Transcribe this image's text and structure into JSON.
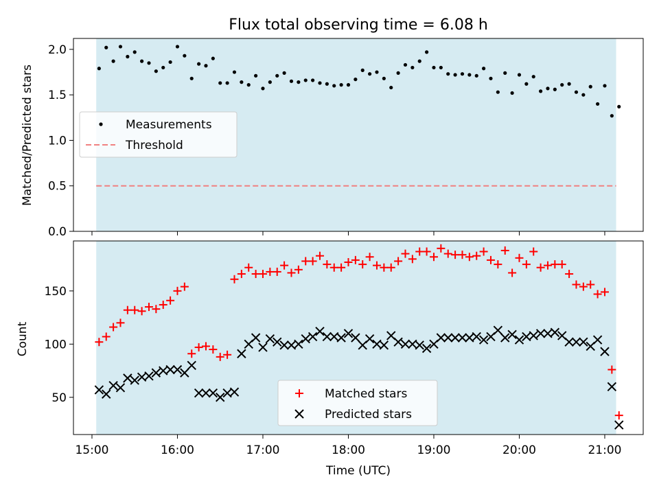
{
  "figure": {
    "title": "Flux total observing time = 6.08 h"
  },
  "colors": {
    "shade": "#add8e6",
    "measurement": "#000000",
    "threshold": "#f08080",
    "matched": "#ff0000",
    "predicted": "#000000"
  },
  "chart_data": [
    {
      "type": "scatter",
      "ylabel": "Matched/Predicted stars",
      "ylim": [
        0,
        2.12
      ],
      "yticks": [
        "0.0",
        "0.5",
        "1.0",
        "1.5",
        "2.0"
      ],
      "xlim": [
        "14:47",
        "21:27"
      ],
      "shaded_interval": [
        "15:03",
        "21:08"
      ],
      "threshold": 0.5,
      "legend": {
        "placement": "center-left",
        "entries": [
          "Measurements",
          "Threshold"
        ]
      },
      "series": [
        {
          "name": "Measurements",
          "marker": "dot",
          "x": [
            "15:05",
            "15:10",
            "15:15",
            "15:20",
            "15:25",
            "15:30",
            "15:35",
            "15:40",
            "15:45",
            "15:50",
            "15:55",
            "16:00",
            "16:05",
            "16:10",
            "16:15",
            "16:20",
            "16:25",
            "16:30",
            "16:35",
            "16:40",
            "16:45",
            "16:50",
            "16:55",
            "17:00",
            "17:05",
            "17:10",
            "17:15",
            "17:20",
            "17:25",
            "17:30",
            "17:35",
            "17:40",
            "17:45",
            "17:50",
            "17:55",
            "18:00",
            "18:05",
            "18:10",
            "18:15",
            "18:20",
            "18:25",
            "18:30",
            "18:35",
            "18:40",
            "18:45",
            "18:50",
            "18:55",
            "19:00",
            "19:05",
            "19:10",
            "19:15",
            "19:20",
            "19:25",
            "19:30",
            "19:35",
            "19:40",
            "19:45",
            "19:50",
            "19:55",
            "20:00",
            "20:05",
            "20:10",
            "20:15",
            "20:20",
            "20:25",
            "20:30",
            "20:35",
            "20:40",
            "20:45",
            "20:50",
            "20:55",
            "21:00",
            "21:05",
            "21:10"
          ],
          "y": [
            1.79,
            2.02,
            1.87,
            2.03,
            1.92,
            1.97,
            1.87,
            1.85,
            1.76,
            1.8,
            1.86,
            2.03,
            1.93,
            1.68,
            1.84,
            1.82,
            1.9,
            1.63,
            1.63,
            1.75,
            1.64,
            1.61,
            1.71,
            1.57,
            1.64,
            1.71,
            1.74,
            1.65,
            1.64,
            1.66,
            1.66,
            1.63,
            1.62,
            1.6,
            1.61,
            1.61,
            1.67,
            1.77,
            1.73,
            1.75,
            1.68,
            1.58,
            1.74,
            1.83,
            1.8,
            1.87,
            1.97,
            1.8,
            1.8,
            1.73,
            1.72,
            1.73,
            1.72,
            1.71,
            1.79,
            1.68,
            1.53,
            1.74,
            1.52,
            1.72,
            1.62,
            1.7,
            1.54,
            1.57,
            1.56,
            1.61,
            1.62,
            1.53,
            1.5,
            1.59,
            1.4,
            1.6,
            1.27,
            1.37
          ]
        },
        {
          "name": "Threshold",
          "marker": "dashed-line",
          "y_const": 0.5
        }
      ]
    },
    {
      "type": "scatter",
      "xlabel": "Time (UTC)",
      "ylabel": "Count",
      "ylim": [
        15,
        197
      ],
      "yticks": [
        "50",
        "100",
        "150"
      ],
      "xlim": [
        "14:47",
        "21:27"
      ],
      "xticks": [
        "15:00",
        "16:00",
        "17:00",
        "18:00",
        "19:00",
        "20:00",
        "21:00"
      ],
      "shaded_interval": [
        "15:03",
        "21:08"
      ],
      "legend": {
        "placement": "lower-center",
        "entries": [
          "Matched stars",
          "Predicted stars"
        ]
      },
      "series": [
        {
          "name": "Matched stars",
          "marker": "plus",
          "x": [
            "15:05",
            "15:10",
            "15:15",
            "15:20",
            "15:25",
            "15:30",
            "15:35",
            "15:40",
            "15:45",
            "15:50",
            "15:55",
            "16:00",
            "16:05",
            "16:10",
            "16:15",
            "16:20",
            "16:25",
            "16:30",
            "16:35",
            "16:40",
            "16:45",
            "16:50",
            "16:55",
            "17:00",
            "17:05",
            "17:10",
            "17:15",
            "17:20",
            "17:25",
            "17:30",
            "17:35",
            "17:40",
            "17:45",
            "17:50",
            "17:55",
            "18:00",
            "18:05",
            "18:10",
            "18:15",
            "18:20",
            "18:25",
            "18:30",
            "18:35",
            "18:40",
            "18:45",
            "18:50",
            "18:55",
            "19:00",
            "19:05",
            "19:10",
            "19:15",
            "19:20",
            "19:25",
            "19:30",
            "19:35",
            "19:40",
            "19:45",
            "19:50",
            "19:55",
            "20:00",
            "20:05",
            "20:10",
            "20:15",
            "20:20",
            "20:25",
            "20:30",
            "20:35",
            "20:40",
            "20:45",
            "20:50",
            "20:55",
            "21:00",
            "21:05",
            "21:10"
          ],
          "y": [
            102,
            107,
            116,
            120,
            132,
            132,
            131,
            135,
            133,
            137,
            141,
            150,
            154,
            91,
            97,
            98,
            95,
            88,
            90,
            161,
            166,
            172,
            166,
            166,
            168,
            168,
            174,
            167,
            170,
            178,
            178,
            183,
            175,
            172,
            172,
            177,
            179,
            175,
            182,
            174,
            172,
            172,
            178,
            185,
            180,
            187,
            187,
            182,
            190,
            185,
            184,
            184,
            182,
            183,
            187,
            179,
            175,
            188,
            167,
            181,
            175,
            187,
            172,
            174,
            175,
            175,
            166,
            156,
            154,
            156,
            147,
            149,
            76,
            33
          ]
        },
        {
          "name": "Predicted stars",
          "marker": "x",
          "x": [
            "15:05",
            "15:10",
            "15:15",
            "15:20",
            "15:25",
            "15:30",
            "15:35",
            "15:40",
            "15:45",
            "15:50",
            "15:55",
            "16:00",
            "16:05",
            "16:10",
            "16:15",
            "16:20",
            "16:25",
            "16:30",
            "16:35",
            "16:40",
            "16:45",
            "16:50",
            "16:55",
            "17:00",
            "17:05",
            "17:10",
            "17:15",
            "17:20",
            "17:25",
            "17:30",
            "17:35",
            "17:40",
            "17:45",
            "17:50",
            "17:55",
            "18:00",
            "18:05",
            "18:10",
            "18:15",
            "18:20",
            "18:25",
            "18:30",
            "18:35",
            "18:40",
            "18:45",
            "18:50",
            "18:55",
            "19:00",
            "19:05",
            "19:10",
            "19:15",
            "19:20",
            "19:25",
            "19:30",
            "19:35",
            "19:40",
            "19:45",
            "19:50",
            "19:55",
            "20:00",
            "20:05",
            "20:10",
            "20:15",
            "20:20",
            "20:25",
            "20:30",
            "20:35",
            "20:40",
            "20:45",
            "20:50",
            "20:55",
            "21:00",
            "21:05",
            "21:10"
          ],
          "y": [
            57,
            53,
            61,
            59,
            68,
            66,
            69,
            70,
            73,
            75,
            76,
            76,
            73,
            80,
            54,
            54,
            54,
            50,
            54,
            55,
            91,
            100,
            106,
            97,
            105,
            102,
            99,
            99,
            100,
            105,
            107,
            112,
            107,
            107,
            106,
            110,
            106,
            99,
            105,
            100,
            99,
            108,
            102,
            100,
            100,
            99,
            96,
            100,
            106,
            106,
            106,
            106,
            106,
            107,
            104,
            107,
            113,
            106,
            109,
            104,
            107,
            108,
            110,
            110,
            111,
            108,
            102,
            102,
            102,
            98,
            104,
            93,
            60,
            24
          ]
        }
      ]
    }
  ]
}
